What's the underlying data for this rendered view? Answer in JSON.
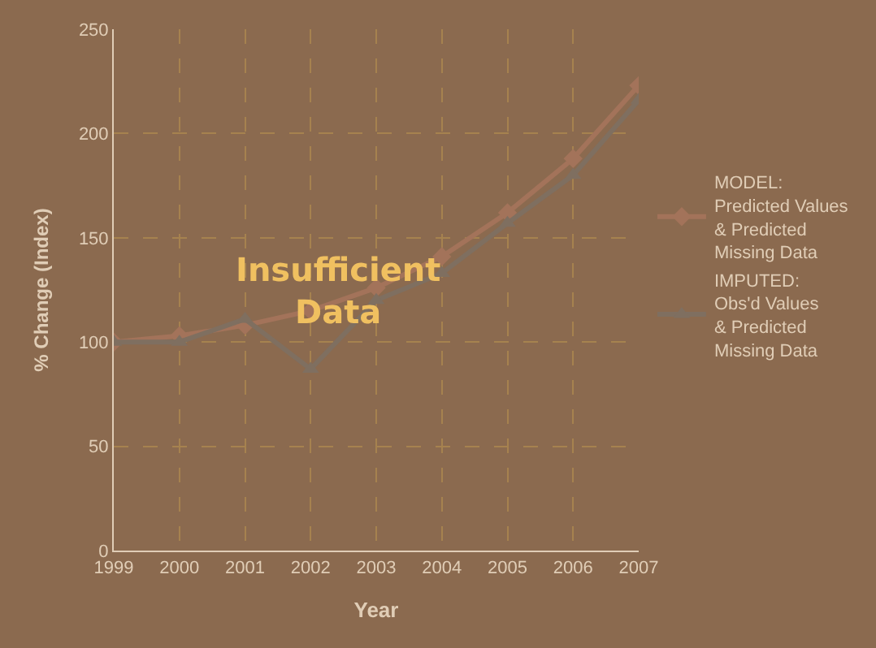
{
  "chart_data": {
    "type": "line",
    "xlabel": "Year",
    "ylabel": "% Change (Index)",
    "categories": [
      "1999",
      "2000",
      "2001",
      "2002",
      "2003",
      "2004",
      "2005",
      "2006",
      "2007"
    ],
    "series": [
      {
        "name": "MODEL:\nPredicted Values\n& Predicted\nMissing Data",
        "color": "#a3735a",
        "marker": "diamond",
        "values": [
          100,
          103,
          108,
          115,
          126,
          141,
          162,
          188,
          223
        ]
      },
      {
        "name": "IMPUTED:\nObs'd Values\n& Predicted\nMissing Data",
        "color": "#7f6f60",
        "marker": "triangle",
        "values": [
          100,
          100,
          111,
          87,
          120,
          133,
          157,
          180,
          216
        ]
      }
    ],
    "ylim": [
      0,
      250
    ],
    "yticks": [
      0,
      50,
      100,
      150,
      200,
      250
    ],
    "grid": true,
    "legend": "right",
    "annotations": [
      "Insufficient\nData"
    ]
  }
}
